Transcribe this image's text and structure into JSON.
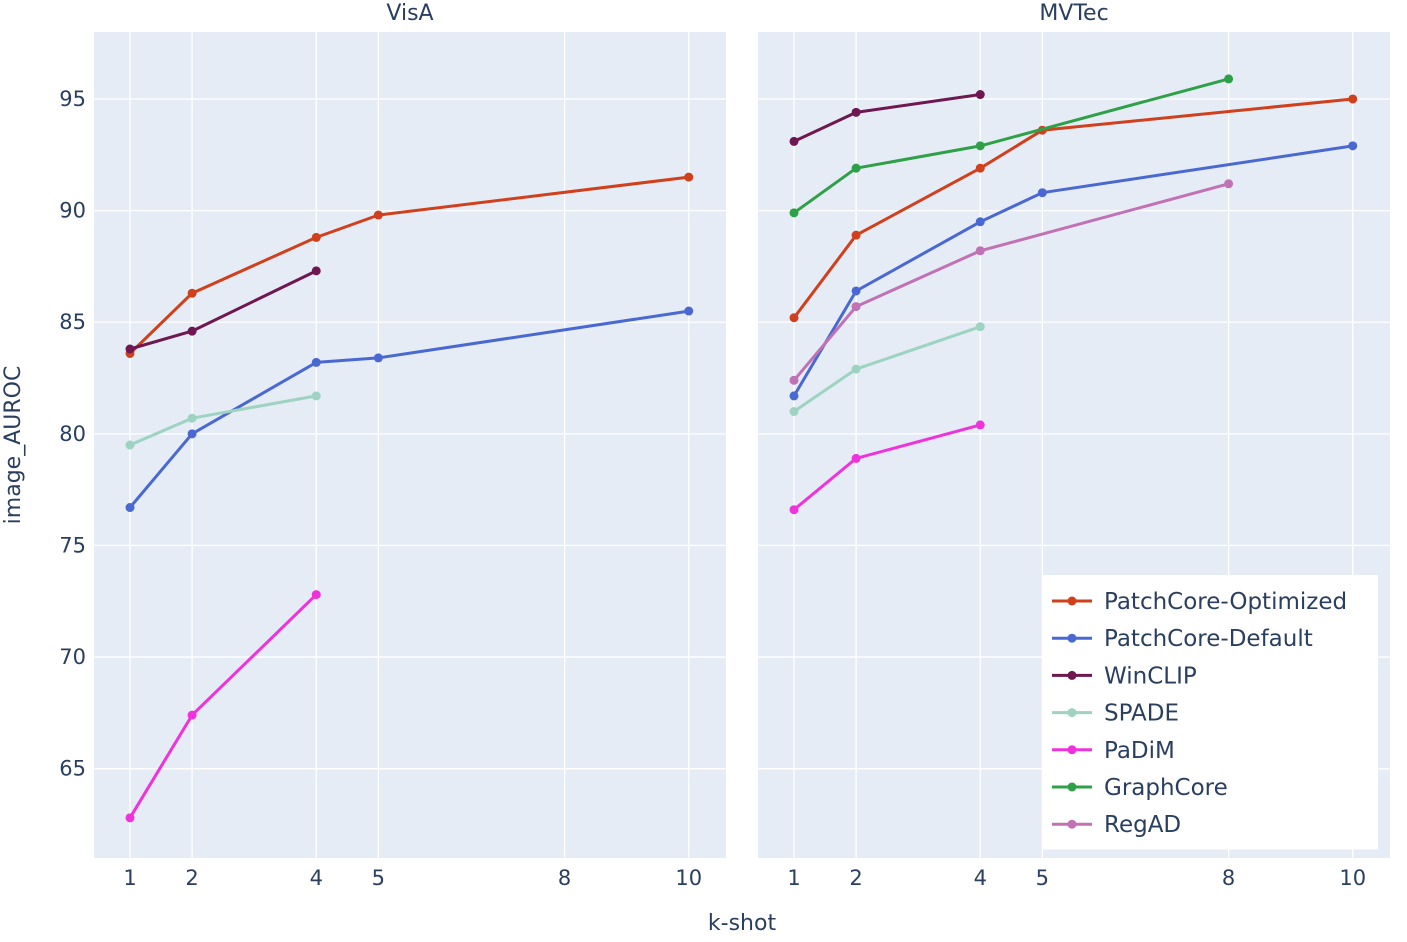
{
  "chart_data": {
    "type": "line",
    "xlabel": "k-shot",
    "ylabel": "image_AUROC",
    "y_tick_values": [
      65,
      70,
      75,
      80,
      85,
      90,
      95
    ],
    "ylim": [
      61.0,
      98.0
    ],
    "x_tick_values": [
      1,
      2,
      4,
      5,
      8,
      10
    ],
    "xlim": [
      0.42,
      10.6
    ],
    "grid": true,
    "legend_placement": "bottom-right",
    "colors": {
      "plot_bg": "#e5ecf6",
      "grid": "#ffffff",
      "text": "#2a3f5f"
    },
    "legend": [
      {
        "name": "PatchCore-Optimized",
        "color": "#d1401c"
      },
      {
        "name": "PatchCore-Default",
        "color": "#4a68d1"
      },
      {
        "name": "WinCLIP",
        "color": "#6e1750"
      },
      {
        "name": "SPADE",
        "color": "#9dd3c0"
      },
      {
        "name": "PaDiM",
        "color": "#f032dc"
      },
      {
        "name": "GraphCore",
        "color": "#2ea047"
      },
      {
        "name": "RegAD",
        "color": "#c072b4"
      }
    ],
    "panels": [
      {
        "title": "VisA",
        "series": [
          {
            "name": "PatchCore-Optimized",
            "x": [
              1,
              2,
              4,
              5,
              10
            ],
            "y": [
              83.6,
              86.3,
              88.8,
              89.8,
              91.5
            ]
          },
          {
            "name": "PatchCore-Default",
            "x": [
              1,
              2,
              4,
              5,
              10
            ],
            "y": [
              76.7,
              80.0,
              83.2,
              83.4,
              85.5
            ]
          },
          {
            "name": "WinCLIP",
            "x": [
              1,
              2,
              4
            ],
            "y": [
              83.8,
              84.6,
              87.3
            ]
          },
          {
            "name": "SPADE",
            "x": [
              1,
              2,
              4
            ],
            "y": [
              79.5,
              80.7,
              81.7
            ]
          },
          {
            "name": "PaDiM",
            "x": [
              1,
              2,
              4
            ],
            "y": [
              62.8,
              67.4,
              72.8
            ]
          }
        ]
      },
      {
        "title": "MVTec",
        "series": [
          {
            "name": "PatchCore-Optimized",
            "x": [
              1,
              2,
              4,
              5,
              10
            ],
            "y": [
              85.2,
              88.9,
              91.9,
              93.6,
              95.0
            ]
          },
          {
            "name": "PatchCore-Default",
            "x": [
              1,
              2,
              4,
              5,
              10
            ],
            "y": [
              81.7,
              86.4,
              89.5,
              90.8,
              92.9
            ]
          },
          {
            "name": "WinCLIP",
            "x": [
              1,
              2,
              4
            ],
            "y": [
              93.1,
              94.4,
              95.2
            ]
          },
          {
            "name": "SPADE",
            "x": [
              1,
              2,
              4
            ],
            "y": [
              81.0,
              82.9,
              84.8
            ]
          },
          {
            "name": "PaDiM",
            "x": [
              1,
              2,
              4
            ],
            "y": [
              76.6,
              78.9,
              80.4
            ]
          },
          {
            "name": "GraphCore",
            "x": [
              1,
              2,
              4,
              8
            ],
            "y": [
              89.9,
              91.9,
              92.9,
              95.9
            ]
          },
          {
            "name": "RegAD",
            "x": [
              1,
              2,
              4,
              8
            ],
            "y": [
              82.4,
              85.7,
              88.2,
              91.2
            ]
          }
        ]
      }
    ]
  }
}
